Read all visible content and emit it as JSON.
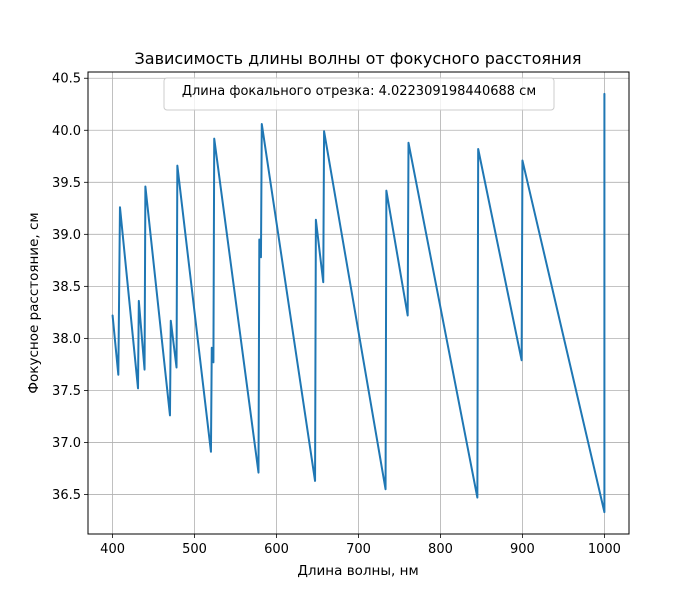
{
  "chart_data": {
    "type": "line",
    "title": "Зависимость длины волны от фокусного расстояния",
    "xlabel": "Длина волны, нм",
    "ylabel": "Фокусное расстояние, см",
    "annotation": "Длина фокального отрезка: 4.022309198440688 см",
    "annotation_placement": "top-center",
    "grid": true,
    "xlim": [
      370,
      1030
    ],
    "ylim": [
      36.12,
      40.56
    ],
    "xticks": [
      400,
      500,
      600,
      700,
      800,
      900,
      1000
    ],
    "xtick_labels": [
      "400",
      "500",
      "600",
      "700",
      "800",
      "900",
      "1000"
    ],
    "yticks": [
      36.5,
      37.0,
      37.5,
      38.0,
      38.5,
      39.0,
      39.5,
      40.0,
      40.5
    ],
    "ytick_labels": [
      "36.5",
      "37.0",
      "37.5",
      "38.0",
      "38.5",
      "39.0",
      "39.5",
      "40.0",
      "40.5"
    ],
    "series": [
      {
        "color": "#1f77b4",
        "x": [
          400,
          407,
          409,
          431,
          432,
          439,
          440,
          470,
          471,
          478,
          479,
          520,
          521,
          523,
          524,
          578,
          579,
          581,
          582,
          647,
          648,
          657,
          658,
          733,
          734,
          760,
          761,
          845,
          846,
          899,
          900,
          1000,
          1000
        ],
        "y": [
          38.22,
          37.65,
          39.26,
          37.52,
          38.36,
          37.7,
          39.46,
          37.26,
          38.17,
          37.72,
          39.66,
          36.91,
          37.91,
          37.77,
          39.92,
          36.71,
          38.95,
          38.78,
          40.06,
          36.63,
          39.14,
          38.54,
          39.99,
          36.55,
          39.42,
          38.22,
          39.88,
          36.47,
          39.82,
          37.79,
          39.71,
          36.33,
          40.35
        ]
      }
    ]
  }
}
